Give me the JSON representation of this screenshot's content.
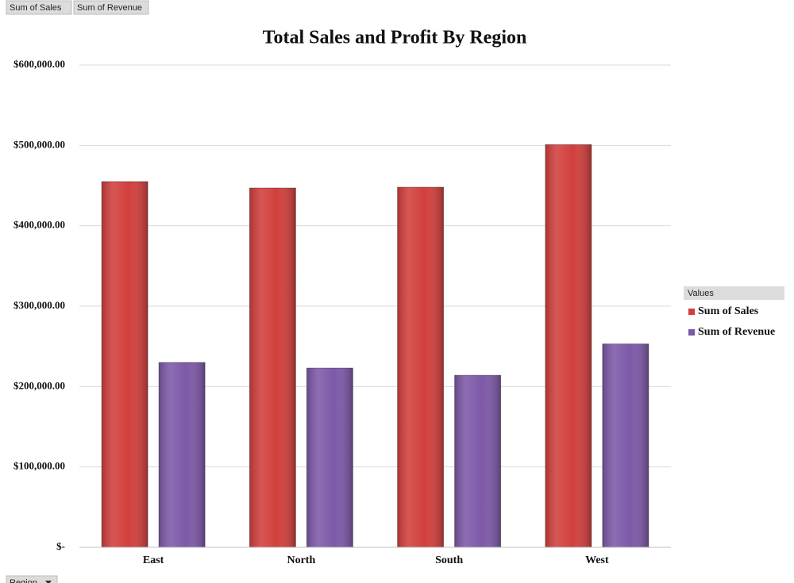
{
  "chart_data": {
    "type": "bar",
    "title": "Total Sales and Profit By Region",
    "xlabel": "Region",
    "legend_title": "Values",
    "legend": "right",
    "grid": true,
    "categories": [
      "East",
      "North",
      "South",
      "West"
    ],
    "series": [
      {
        "name": "Sum of Sales",
        "color": "#d13f3c",
        "values": [
          455000,
          447000,
          448000,
          501000
        ]
      },
      {
        "name": "Sum of Revenue",
        "color": "#7d59a8",
        "values": [
          230000,
          223000,
          214000,
          253000
        ]
      }
    ],
    "ylim": [
      0,
      600000
    ],
    "yticks": [
      {
        "value": 0,
        "label": "$-"
      },
      {
        "value": 100000,
        "label": "$100,000.00"
      },
      {
        "value": 200000,
        "label": "$200,000.00"
      },
      {
        "value": 300000,
        "label": "$300,000.00"
      },
      {
        "value": 400000,
        "label": "$400,000.00"
      },
      {
        "value": 500000,
        "label": "$500,000.00"
      },
      {
        "value": 600000,
        "label": "$600,000.00"
      }
    ]
  }
}
